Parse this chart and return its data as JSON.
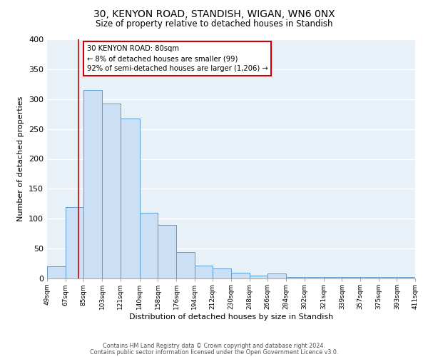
{
  "title1": "30, KENYON ROAD, STANDISH, WIGAN, WN6 0NX",
  "title2": "Size of property relative to detached houses in Standish",
  "xlabel": "Distribution of detached houses by size in Standish",
  "ylabel": "Number of detached properties",
  "bin_edges": [
    49,
    67,
    85,
    103,
    121,
    140,
    158,
    176,
    194,
    212,
    230,
    248,
    266,
    284,
    302,
    321,
    339,
    357,
    375,
    393,
    411
  ],
  "bar_heights": [
    20,
    120,
    315,
    293,
    267,
    110,
    90,
    44,
    22,
    17,
    10,
    5,
    8,
    2,
    2,
    2,
    2,
    2,
    2,
    2
  ],
  "bar_facecolor": "#cce0f5",
  "bar_edgecolor": "#5b9bd5",
  "background_color": "#e8f0f8",
  "grid_color": "#ffffff",
  "ylim": [
    0,
    400
  ],
  "yticks": [
    0,
    50,
    100,
    150,
    200,
    250,
    300,
    350,
    400
  ],
  "red_line_x": 80,
  "annotation_title": "30 KENYON ROAD: 80sqm",
  "annotation_line1": "← 8% of detached houses are smaller (99)",
  "annotation_line2": "92% of semi-detached houses are larger (1,206) →",
  "annotation_box_facecolor": "#ffffff",
  "annotation_box_edgecolor": "#cc0000",
  "red_line_color": "#cc0000",
  "footnote1": "Contains HM Land Registry data © Crown copyright and database right 2024.",
  "footnote2": "Contains public sector information licensed under the Open Government Licence v3.0."
}
